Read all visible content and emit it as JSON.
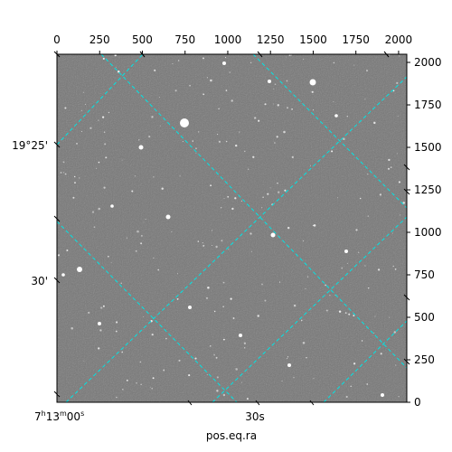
{
  "figure": {
    "xlabel": "pos.eq.ra",
    "background": "#7a7a7a",
    "grid_color": "#00e5e5"
  },
  "pixel_axes": {
    "top_ticks": [
      "0",
      "250",
      "500",
      "750",
      "1000",
      "1250",
      "1500",
      "1750",
      "2000"
    ],
    "right_ticks": [
      "0",
      "250",
      "500",
      "750",
      "1000",
      "1250",
      "1500",
      "1750",
      "2000"
    ],
    "range": [
      0,
      2048
    ]
  },
  "world_axes": {
    "dec_ticks": [
      "19°25'",
      "30'"
    ],
    "ra_ticks": [
      {
        "h": "7",
        "m": "13",
        "s": "00",
        "kind": "full"
      },
      {
        "text": "30s",
        "kind": "seconds"
      }
    ],
    "ra_tick_marks_bottom": [
      60,
      210,
      285,
      345
    ],
    "dec_tick_marks_left": [
      160,
      310
    ]
  }
}
